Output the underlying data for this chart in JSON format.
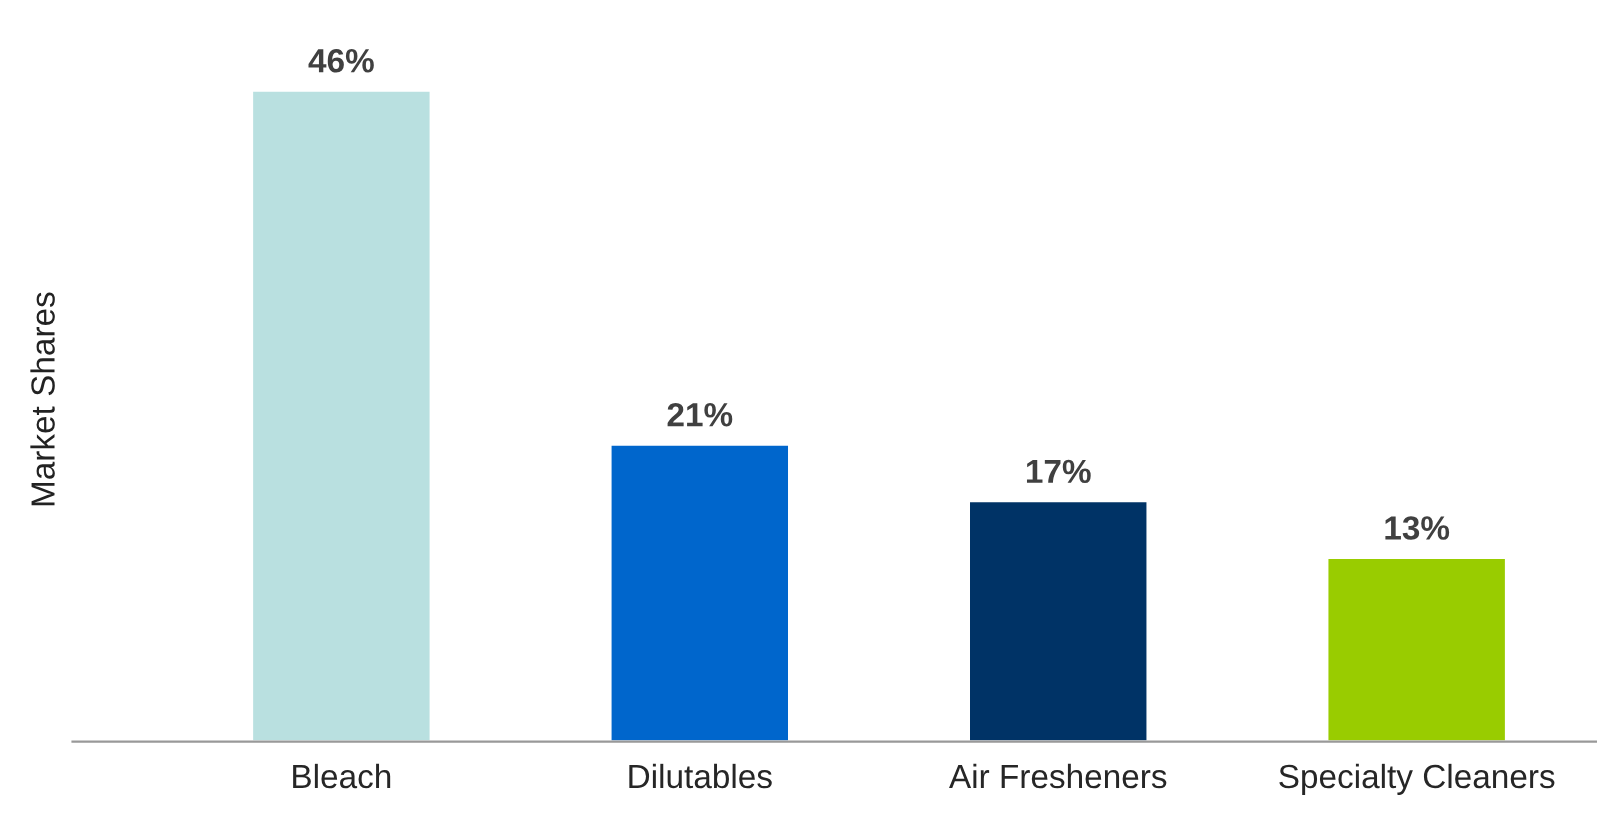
{
  "chart_data": {
    "type": "bar",
    "ylabel": "Market Shares",
    "categories": [
      "Bleach",
      "Dilutables",
      "Air Fresheners",
      "Specialty Cleaners"
    ],
    "values": [
      46,
      21,
      17,
      13
    ],
    "value_labels": [
      "46%",
      "21%",
      "17%",
      "13%"
    ],
    "colors": [
      "#b9e0e0",
      "#0066cc",
      "#003366",
      "#99cc00"
    ],
    "tick_labels": "x"
  }
}
